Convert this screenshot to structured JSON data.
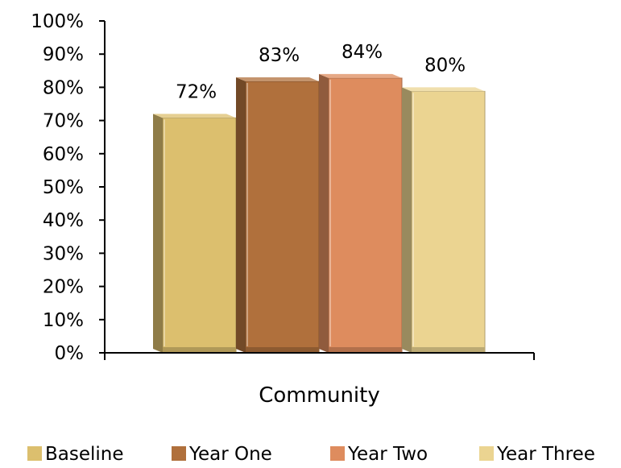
{
  "chart_data": {
    "type": "bar",
    "categories": [
      "Community"
    ],
    "series": [
      {
        "name": "Baseline",
        "values": [
          0.72
        ],
        "label": "72%",
        "color": "#DCBF6E"
      },
      {
        "name": "Year One",
        "values": [
          0.83
        ],
        "label": "83%",
        "color": "#B0703C"
      },
      {
        "name": "Year Two",
        "values": [
          0.84
        ],
        "label": "84%",
        "color": "#DE8C5E"
      },
      {
        "name": "Year Three",
        "values": [
          0.8
        ],
        "label": "80%",
        "color": "#EBD491"
      }
    ],
    "ylim": [
      0,
      1
    ],
    "yticks": [
      "0%",
      "10%",
      "20%",
      "30%",
      "40%",
      "50%",
      "60%",
      "70%",
      "80%",
      "90%",
      "100%"
    ],
    "title": "",
    "xlabel": "",
    "ylabel": "",
    "legend_position": "bottom",
    "grid": false
  }
}
